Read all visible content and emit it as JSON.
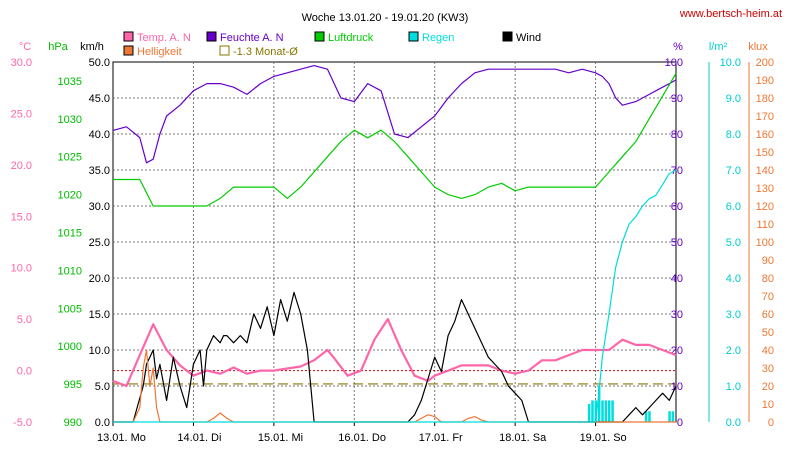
{
  "chart_data": {
    "type": "line",
    "title": "Woche 13.01.20 - 19.01.20 (KW3)",
    "source": "www.bertsch-heim.at",
    "x_labels": [
      "13.01. Mo",
      "14.01. Di",
      "15.01. Mi",
      "16.01. Do",
      "17.01. Fr",
      "18.01. Sa",
      "19.01. So"
    ],
    "hours_total": 168,
    "axes": [
      {
        "id": "temp",
        "unit": "°C",
        "color": "#ff66aa",
        "min": -5,
        "max": 30,
        "step": 5,
        "decimals": 1,
        "side": "left"
      },
      {
        "id": "hpa",
        "unit": "hPa",
        "color": "#00bb00",
        "min": 990,
        "max": 1037.5,
        "ticks": [
          990,
          995,
          1000,
          1005,
          1010,
          1015,
          1020,
          1025,
          1030,
          1035
        ],
        "decimals": 0,
        "side": "left"
      },
      {
        "id": "kmh",
        "unit": "km/h",
        "color": "#000000",
        "min": 0,
        "max": 50,
        "step": 5,
        "decimals": 1,
        "side": "left"
      },
      {
        "id": "pct",
        "unit": "%",
        "color": "#6600cc",
        "min": 0,
        "max": 100,
        "step": 10,
        "decimals": 0,
        "side": "right"
      },
      {
        "id": "lm2",
        "unit": "l/m²",
        "color": "#00cccc",
        "min": 0,
        "max": 10,
        "step": 1,
        "decimals": 1,
        "side": "right"
      },
      {
        "id": "klux",
        "unit": "klux",
        "color": "#ee7733",
        "min": 0,
        "max": 200,
        "step": 10,
        "decimals": 0,
        "side": "right"
      }
    ],
    "legend": [
      {
        "label": "Temp. A. N",
        "color": "#ff66aa"
      },
      {
        "label": "Feuchte A. N",
        "color": "#6600cc"
      },
      {
        "label": "Luftdruck",
        "color": "#00cc00"
      },
      {
        "label": "Regen",
        "color": "#00dddd"
      },
      {
        "label": "Wind",
        "color": "#000000"
      },
      {
        "label": "Helligkeit",
        "color": "#ee7733"
      },
      {
        "label": "-1.3 Monat-Ø",
        "color": "#887700"
      }
    ],
    "month_avg_temp": -1.3,
    "series": [
      {
        "name": "Temp. A. N",
        "axis": "temp",
        "color": "#ff66aa",
        "x": [
          0,
          4,
          8,
          12,
          16,
          20,
          24,
          28,
          32,
          36,
          40,
          44,
          48,
          52,
          56,
          60,
          64,
          66,
          70,
          74,
          78,
          82,
          86,
          90,
          94,
          96,
          100,
          104,
          108,
          112,
          116,
          120,
          124,
          128,
          132,
          136,
          140,
          144,
          148,
          152,
          156,
          160,
          164,
          168
        ],
        "y": [
          -1.0,
          -1.5,
          1.5,
          4.5,
          2.0,
          0.5,
          -0.5,
          0.0,
          -0.3,
          0.3,
          -0.3,
          0.0,
          0.0,
          0.2,
          0.4,
          1.0,
          2.0,
          1.2,
          -0.5,
          0.0,
          3.0,
          5.0,
          2.0,
          -0.5,
          -1.0,
          -0.5,
          0.0,
          0.5,
          0.5,
          0.5,
          0.0,
          -0.3,
          0.0,
          1.0,
          1.0,
          1.5,
          2.0,
          2.0,
          2.0,
          3.0,
          2.5,
          2.5,
          2.0,
          1.5
        ]
      },
      {
        "name": "Feuchte A. N",
        "axis": "pct",
        "color": "#6600cc",
        "x": [
          0,
          4,
          8,
          10,
          12,
          14,
          16,
          20,
          24,
          28,
          32,
          36,
          40,
          44,
          48,
          52,
          56,
          60,
          64,
          68,
          72,
          76,
          80,
          84,
          88,
          92,
          96,
          100,
          104,
          108,
          112,
          116,
          120,
          124,
          128,
          132,
          136,
          140,
          144,
          146,
          148,
          150,
          152,
          156,
          160,
          164,
          168
        ],
        "y": [
          81,
          82,
          79,
          72,
          73,
          80,
          85,
          88,
          92,
          94,
          94,
          93,
          91,
          94,
          96,
          97,
          98,
          99,
          98,
          90,
          89,
          94,
          92,
          80,
          79,
          82,
          85,
          90,
          94,
          97,
          98,
          98,
          98,
          98,
          98,
          98,
          97,
          98,
          97,
          96,
          94,
          90,
          88,
          89,
          91,
          93,
          95
        ]
      },
      {
        "name": "Luftdruck",
        "axis": "hpa",
        "color": "#00cc00",
        "x": [
          0,
          4,
          8,
          12,
          16,
          20,
          24,
          28,
          32,
          36,
          40,
          44,
          48,
          52,
          56,
          60,
          64,
          68,
          72,
          76,
          80,
          84,
          88,
          92,
          96,
          100,
          104,
          108,
          112,
          116,
          120,
          124,
          128,
          132,
          136,
          140,
          144,
          148,
          152,
          156,
          160,
          164,
          168
        ],
        "y": [
          1022,
          1022,
          1022,
          1018.5,
          1018.5,
          1018.5,
          1018.5,
          1018.5,
          1019.5,
          1021,
          1021,
          1021,
          1021,
          1019.5,
          1021,
          1023,
          1025,
          1027,
          1028.5,
          1027.5,
          1028.5,
          1027,
          1025,
          1023,
          1021,
          1020,
          1019.5,
          1020,
          1021,
          1021.5,
          1020.5,
          1021,
          1021,
          1021,
          1021,
          1021,
          1021,
          1023,
          1025,
          1027,
          1030,
          1033,
          1036
        ]
      },
      {
        "name": "Wind",
        "axis": "kmh",
        "color": "#000000",
        "x": [
          0,
          6,
          9,
          10,
          12,
          13,
          14,
          16,
          18,
          20,
          22,
          24,
          26,
          27,
          28,
          30,
          32,
          33,
          34,
          36,
          38,
          40,
          42,
          44,
          46,
          48,
          50,
          52,
          54,
          56,
          58,
          60,
          62,
          64,
          66,
          68,
          70,
          72,
          74,
          76,
          78,
          80,
          82,
          84,
          86,
          88,
          90,
          92,
          94,
          96,
          98,
          100,
          102,
          104,
          106,
          108,
          110,
          112,
          114,
          116,
          118,
          120,
          122,
          124,
          126,
          128,
          130,
          132,
          134,
          136,
          138,
          140,
          142,
          144,
          146,
          148,
          150,
          152,
          154,
          156,
          158,
          160,
          162,
          164,
          166,
          168
        ],
        "y": [
          0,
          0,
          5,
          8,
          10,
          6,
          8,
          3,
          9,
          5,
          2,
          8,
          10,
          5,
          10,
          12,
          11,
          12,
          12,
          11,
          12,
          11,
          15,
          13,
          16,
          12,
          17,
          14,
          18,
          15,
          10,
          0,
          0,
          0,
          0,
          0,
          0,
          0,
          0,
          0,
          0,
          0,
          0,
          0,
          0,
          0,
          1,
          3,
          6,
          9,
          7,
          12,
          14,
          17,
          15,
          13,
          11,
          9,
          8,
          7,
          5,
          4,
          3,
          0,
          0,
          0,
          0,
          0,
          0,
          0,
          0,
          0,
          0,
          0,
          0,
          0,
          0,
          0,
          1,
          2,
          1,
          2,
          3,
          4,
          3,
          5
        ]
      },
      {
        "name": "Helligkeit",
        "axis": "klux",
        "color": "#ee7733",
        "x": [
          0,
          6,
          8,
          9,
          10,
          11,
          12,
          13,
          14,
          16,
          18,
          20,
          22,
          24,
          26,
          28,
          30,
          32,
          34,
          36,
          38,
          40,
          42,
          44,
          46,
          48,
          50,
          52,
          54,
          56,
          58,
          60,
          62,
          64,
          66,
          68,
          70,
          72,
          74,
          76,
          78,
          80,
          82,
          84,
          86,
          88,
          90,
          92,
          94,
          96,
          98,
          100,
          102,
          104,
          106,
          108,
          110,
          112,
          114,
          116,
          118,
          120,
          122,
          124,
          126,
          128,
          130,
          132,
          134,
          136,
          138,
          140,
          142,
          144,
          146,
          148,
          150,
          152,
          154,
          156,
          158,
          160,
          162,
          164,
          166,
          168
        ],
        "y": [
          0,
          0,
          8,
          30,
          40,
          20,
          30,
          8,
          0,
          0,
          0,
          0,
          0,
          0,
          0,
          0,
          2,
          5,
          2,
          0,
          0,
          0,
          0,
          0,
          0,
          0,
          0,
          0,
          0,
          0,
          0,
          0,
          0,
          0,
          0,
          0,
          0,
          0,
          0,
          0,
          0,
          0,
          0,
          0,
          0,
          0,
          0,
          2,
          4,
          3,
          0,
          0,
          0,
          0,
          2,
          3,
          1,
          0,
          0,
          0,
          0,
          0,
          0,
          0,
          0,
          0,
          0,
          0,
          0,
          0,
          0,
          0,
          0,
          0,
          0,
          0,
          0,
          0,
          0,
          0,
          0,
          0,
          0,
          0,
          0,
          0
        ]
      },
      {
        "name": "Regen",
        "axis": "lm2",
        "color": "#00dddd",
        "x": [
          0,
          144,
          145,
          146,
          148,
          150,
          152,
          154,
          156,
          158,
          160,
          162,
          164,
          166,
          168
        ],
        "y": [
          0,
          0,
          0.8,
          1.8,
          3.0,
          4.3,
          5.0,
          5.5,
          5.7,
          6.0,
          6.2,
          6.3,
          6.6,
          6.9,
          7.0
        ]
      }
    ],
    "rain_bars": {
      "axis": "lm2",
      "color": "#00dddd",
      "x": [
        142,
        143,
        144,
        145,
        146,
        147,
        148,
        149,
        159,
        160,
        166,
        167
      ],
      "y": [
        0.5,
        0.6,
        0.6,
        1.0,
        0.6,
        0.6,
        0.6,
        0.6,
        0.3,
        0.3,
        0.3,
        0.3
      ]
    }
  }
}
